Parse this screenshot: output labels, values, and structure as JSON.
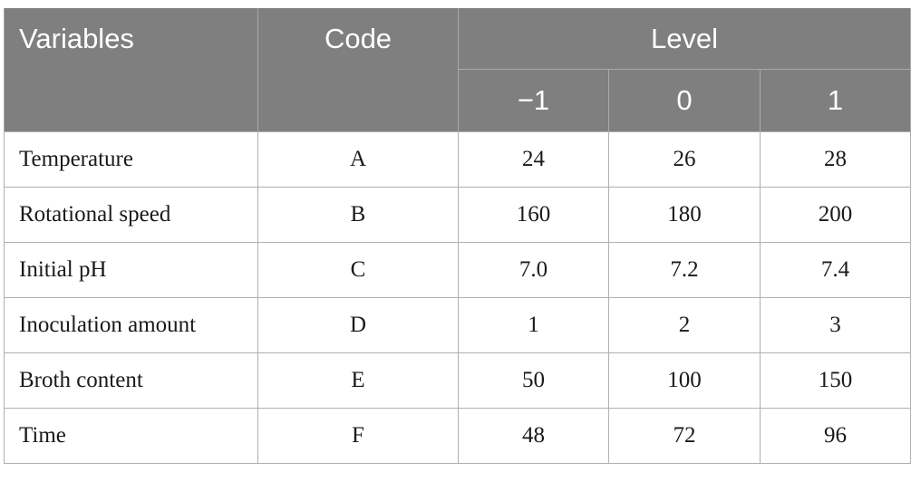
{
  "table": {
    "headers": {
      "variables": "Variables",
      "code": "Code",
      "level": "Level",
      "levels": [
        "−1",
        "0",
        "1"
      ]
    },
    "rows": [
      {
        "variable": "Temperature",
        "code": "A",
        "values": [
          "24",
          "26",
          "28"
        ]
      },
      {
        "variable": "Rotational speed",
        "code": "B",
        "values": [
          "160",
          "180",
          "200"
        ]
      },
      {
        "variable": "Initial pH",
        "code": "C",
        "values": [
          "7.0",
          "7.2",
          "7.4"
        ]
      },
      {
        "variable": "Inoculation amount",
        "code": "D",
        "values": [
          "1",
          "2",
          "3"
        ]
      },
      {
        "variable": "Broth content",
        "code": "E",
        "values": [
          "50",
          "100",
          "150"
        ]
      },
      {
        "variable": "Time",
        "code": "F",
        "values": [
          "48",
          "72",
          "96"
        ]
      }
    ]
  },
  "colors": {
    "header_bg": "#7f7f7f",
    "header_text": "#ffffff",
    "grid": "#b0b0b0"
  }
}
